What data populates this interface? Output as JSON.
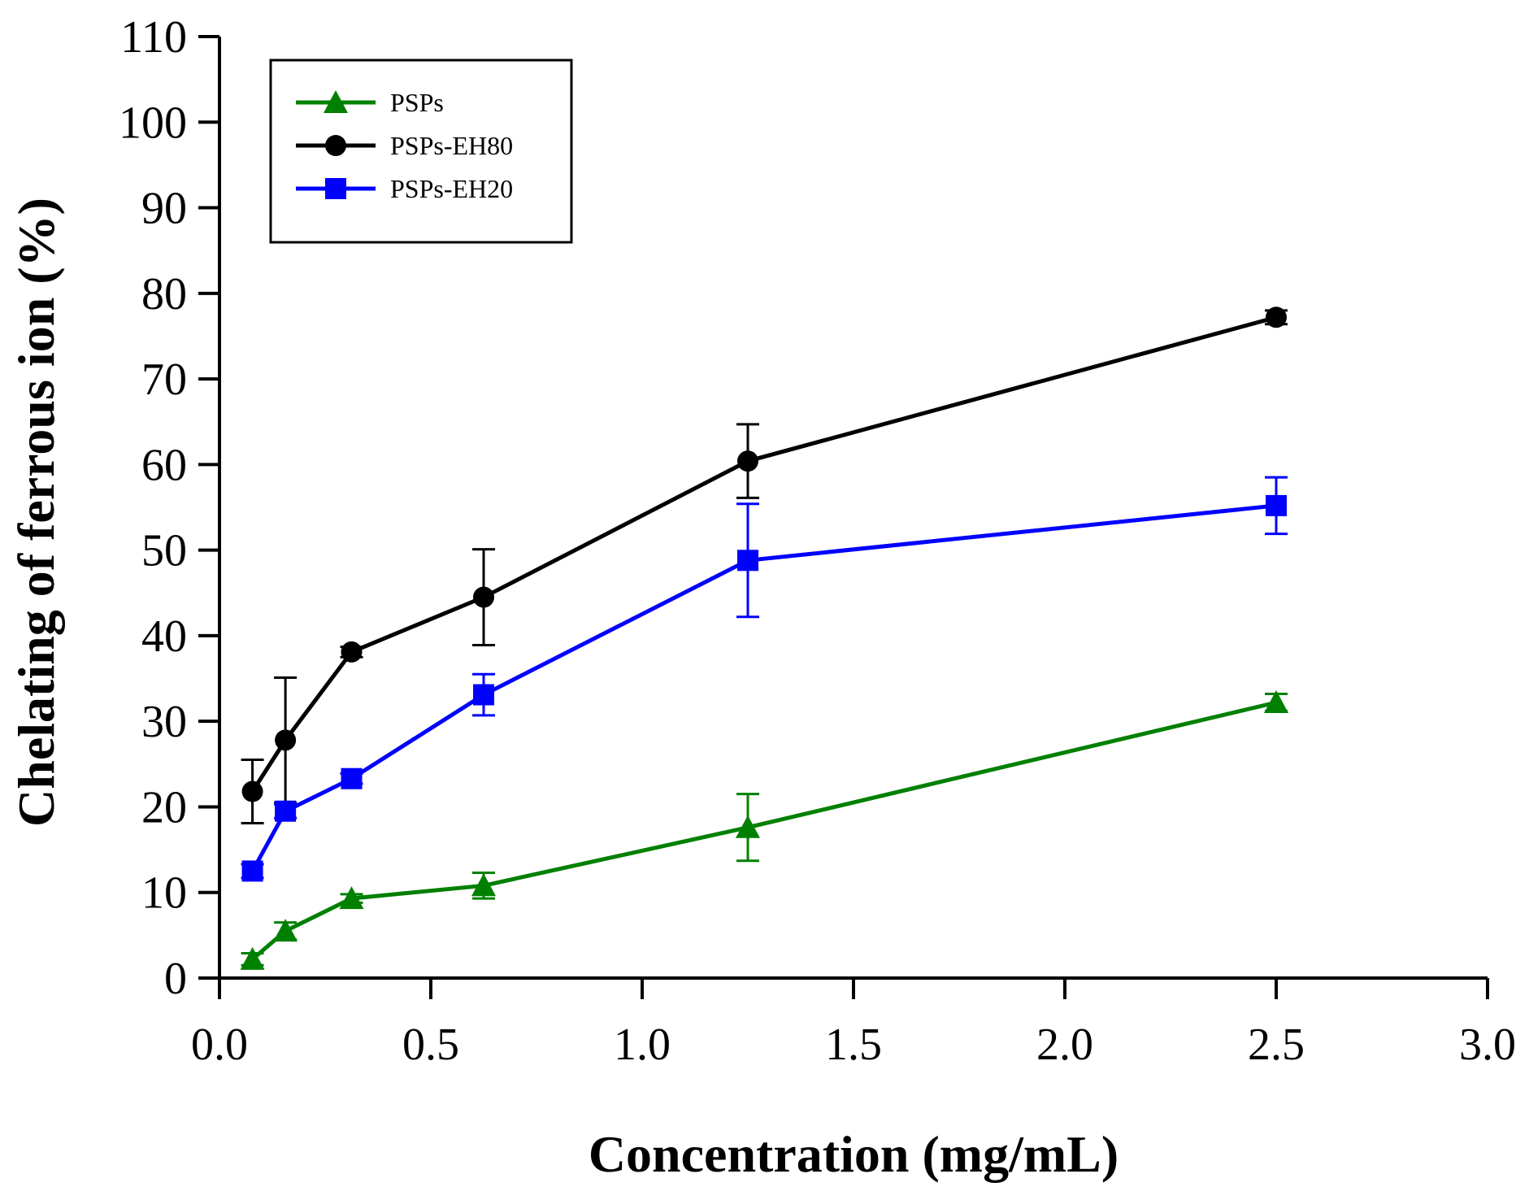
{
  "chart_data": {
    "type": "line",
    "title": "",
    "xlabel": "Concentration (mg/mL)",
    "ylabel": "Chelating of ferrous ion (%)",
    "xlim": [
      0,
      3.0
    ],
    "ylim": [
      0,
      110
    ],
    "x_ticks": [
      "0.0",
      "0.5",
      "1.0",
      "1.5",
      "2.0",
      "2.5",
      "3.0"
    ],
    "y_ticks": [
      "0",
      "10",
      "20",
      "30",
      "40",
      "50",
      "60",
      "70",
      "80",
      "90",
      "100",
      "110"
    ],
    "x": [
      0.078,
      0.156,
      0.3125,
      0.625,
      1.25,
      2.5
    ],
    "grid": false,
    "legend_position": "top-left",
    "series": [
      {
        "name": "PSPs",
        "color": "#008000",
        "marker": "triangle",
        "values": [
          2.2,
          5.5,
          9.3,
          10.8,
          17.6,
          32.2
        ],
        "errors": [
          0.7,
          1.0,
          0.5,
          1.5,
          3.9,
          1.0
        ]
      },
      {
        "name": "PSPs-EH80",
        "color": "#000000",
        "marker": "circle",
        "values": [
          21.8,
          27.8,
          38.1,
          44.5,
          60.4,
          77.2
        ],
        "errors": [
          3.7,
          7.3,
          0.6,
          5.6,
          4.3,
          0.8
        ]
      },
      {
        "name": "PSPs-EH20",
        "color": "#0000ff",
        "marker": "square",
        "values": [
          12.5,
          19.5,
          23.3,
          33.1,
          48.8,
          55.2
        ],
        "errors": [
          0.8,
          0.8,
          0.6,
          2.4,
          6.6,
          3.3
        ]
      }
    ]
  }
}
